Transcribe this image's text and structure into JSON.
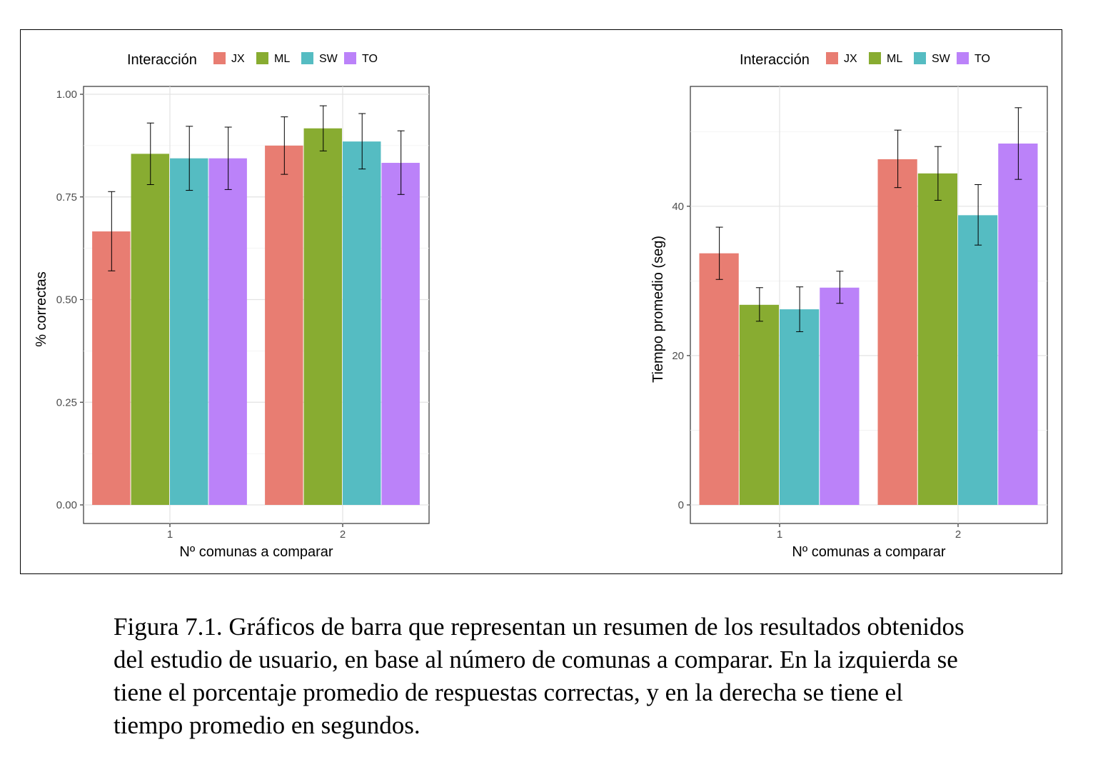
{
  "caption": "Figura 7.1.  Gráficos de barra que representan un resumen de los resultados obtenidos del estudio de usuario, en base al número de comunas a comparar. En la izquierda se tiene el porcentaje promedio de respuestas correctas, y en la derecha se tiene el tiempo promedio en segundos.",
  "chart_data": [
    {
      "type": "bar",
      "title": "",
      "xlabel": "Nº comunas a comparar",
      "ylabel": "% correctas",
      "categories": [
        "1",
        "2"
      ],
      "ylim": [
        0,
        1.0
      ],
      "yticks": [
        "0.00",
        "0.25",
        "0.50",
        "0.75",
        "1.00"
      ],
      "legend": {
        "title": "Interacción",
        "placement": "top"
      },
      "series": [
        {
          "name": "JX",
          "color": "#E87D72",
          "values": [
            0.666,
            0.875
          ],
          "err_low": [
            0.57,
            0.805
          ],
          "err_high": [
            0.763,
            0.945
          ]
        },
        {
          "name": "ML",
          "color": "#88AC31",
          "values": [
            0.855,
            0.917
          ],
          "err_low": [
            0.78,
            0.862
          ],
          "err_high": [
            0.93,
            0.972
          ]
        },
        {
          "name": "SW",
          "color": "#55BCC2",
          "values": [
            0.844,
            0.885
          ],
          "err_low": [
            0.766,
            0.818
          ],
          "err_high": [
            0.922,
            0.953
          ]
        },
        {
          "name": "TO",
          "color": "#BB82F9",
          "values": [
            0.844,
            0.833
          ],
          "err_low": [
            0.768,
            0.756
          ],
          "err_high": [
            0.92,
            0.911
          ]
        }
      ],
      "grid": true
    },
    {
      "type": "bar",
      "title": "",
      "xlabel": "Nº comunas a comparar",
      "ylabel": "Tiempo promedio (seg)",
      "categories": [
        "1",
        "2"
      ],
      "ylim": [
        0,
        55
      ],
      "yticks": [
        "0",
        "20",
        "40"
      ],
      "legend": {
        "title": "Interacción",
        "placement": "top"
      },
      "series": [
        {
          "name": "JX",
          "color": "#E87D72",
          "values": [
            33.7,
            46.3
          ],
          "err_low": [
            30.2,
            42.5
          ],
          "err_high": [
            37.2,
            50.2
          ]
        },
        {
          "name": "ML",
          "color": "#88AC31",
          "values": [
            26.8,
            44.4
          ],
          "err_low": [
            24.6,
            40.8
          ],
          "err_high": [
            29.1,
            48.0
          ]
        },
        {
          "name": "SW",
          "color": "#55BCC2",
          "values": [
            26.2,
            38.8
          ],
          "err_low": [
            23.2,
            34.8
          ],
          "err_high": [
            29.2,
            42.9
          ]
        },
        {
          "name": "TO",
          "color": "#BB82F9",
          "values": [
            29.1,
            48.4
          ],
          "err_low": [
            27.0,
            43.6
          ],
          "err_high": [
            31.3,
            53.2
          ]
        }
      ],
      "grid": true
    }
  ]
}
